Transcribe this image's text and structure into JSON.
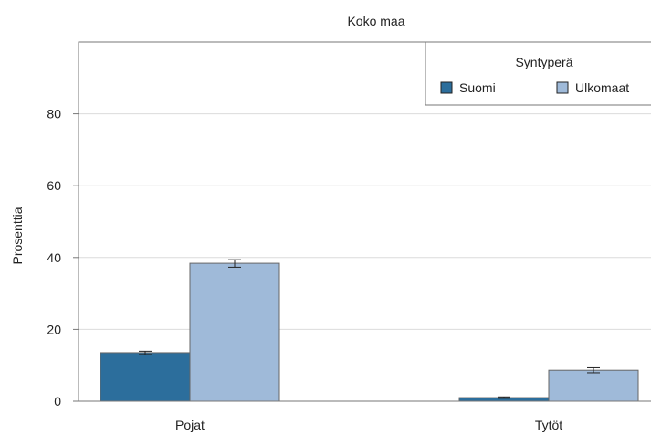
{
  "colors": {
    "suomi": "#2c6e9c",
    "ulkomaat": "#9fbad9",
    "grid": "#dcdcdc",
    "frame": "#777777",
    "errorbar": "#222222"
  },
  "chart_data": {
    "type": "bar",
    "title": "Koko maa",
    "xlabel": "",
    "ylabel": "Prosenttia",
    "categories": [
      "Pojat",
      "Tytöt"
    ],
    "series": [
      {
        "name": "Suomi",
        "values": [
          13.5,
          1.0
        ],
        "error_low": [
          13.0,
          0.8
        ],
        "error_high": [
          13.9,
          1.2
        ]
      },
      {
        "name": "Ulkomaat",
        "values": [
          38.4,
          8.6
        ],
        "error_low": [
          37.3,
          7.9
        ],
        "error_high": [
          39.4,
          9.3
        ]
      }
    ],
    "ylim": [
      0,
      100
    ],
    "yticks": [
      "0",
      "20",
      "40",
      "60",
      "80"
    ],
    "grid": true,
    "legend": {
      "title": "Syntyperä",
      "position": "top-right"
    }
  }
}
